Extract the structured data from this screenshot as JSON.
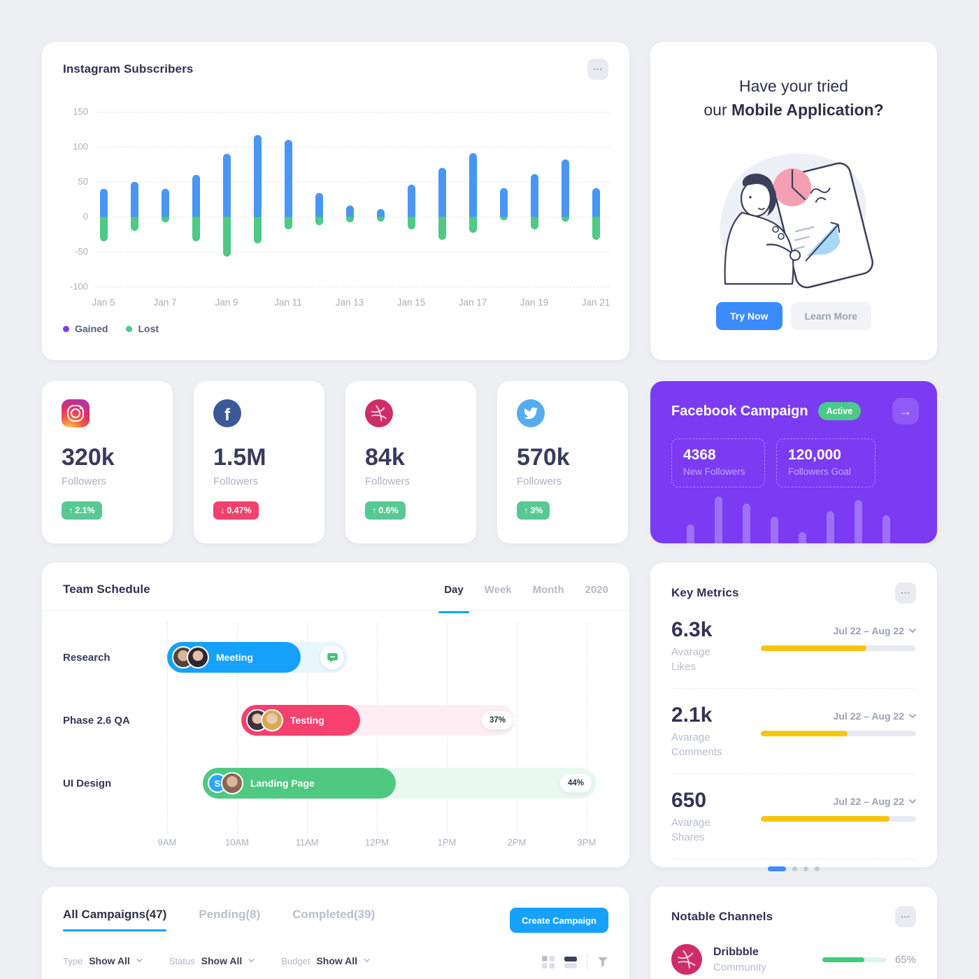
{
  "colors": {
    "page_bg": "#edeff3",
    "accent_blue": "#16a1fb",
    "royal_blue": "#3c8bfd",
    "bar_blue": "#4a96f4",
    "green": "#4ec986",
    "legend_purple": "#7a3cf5",
    "pink_red": "#f8406e",
    "badge_green": "#57c992",
    "badge_red": "#f2416d",
    "purple_card": "#7a3bf3",
    "yellow": "#f8c40d",
    "dribbble_pink": "#ce2e68",
    "facebook_blue": "#3b5998",
    "twitter_blue": "#55acee"
  },
  "instagram_subscribers": {
    "title": "Instagram Subscribers",
    "menu_icon": "ellipsis-icon",
    "legend": [
      {
        "label": "Gained",
        "color": "#7a3cf5"
      },
      {
        "label": "Lost",
        "color": "#4ec986"
      }
    ],
    "chart_data": {
      "type": "bar",
      "stacked": true,
      "categories": [
        "Jan 5",
        "Jan 6",
        "Jan 7",
        "Jan 8",
        "Jan 9",
        "Jan 10",
        "Jan 11",
        "Jan 12",
        "Jan 13",
        "Jan 14",
        "Jan 15",
        "Jan 16",
        "Jan 17",
        "Jan 18",
        "Jan 19",
        "Jan 20",
        "Jan 21"
      ],
      "x_tick_labels": [
        "Jan 5",
        "Jan 7",
        "Jan 9",
        "Jan 11",
        "Jan 13",
        "Jan 15",
        "Jan 17",
        "Jan 19",
        "Jan 21"
      ],
      "series": [
        {
          "name": "Gained",
          "color": "#4a96f4",
          "values": [
            40,
            50,
            40,
            60,
            90,
            117,
            110,
            34,
            16,
            11,
            46,
            70,
            91,
            41,
            61,
            82,
            41
          ]
        },
        {
          "name": "Lost",
          "color": "#4ec986",
          "values": [
            -35,
            -20,
            -8,
            -35,
            -57,
            -38,
            -18,
            -12,
            -8,
            -7,
            -18,
            -33,
            -23,
            -5,
            -18,
            -7,
            -33
          ]
        }
      ],
      "ylim": [
        -100,
        150
      ],
      "yticks": [
        150,
        100,
        50,
        0,
        -50,
        -100
      ],
      "grid": "dashed horizontal",
      "legend_position": "bottom-left"
    }
  },
  "mobile_app_promo": {
    "heading_line1": "Have your tried",
    "heading_line2_prefix": "our ",
    "heading_line2_bold": "Mobile Application?",
    "illustration": "woman-holding-tablet-with-charts",
    "try_now_label": "Try Now",
    "learn_more_label": "Learn More"
  },
  "social_stats": [
    {
      "network": "instagram",
      "icon": "instagram-icon",
      "value": "320k",
      "label": "Followers",
      "change": "2.1%",
      "direction": "up",
      "arrow": "↑"
    },
    {
      "network": "facebook",
      "icon": "facebook-icon",
      "value": "1.5M",
      "label": "Followers",
      "change": "0.47%",
      "direction": "down",
      "arrow": "↓"
    },
    {
      "network": "dribbble",
      "icon": "dribbble-icon",
      "value": "84k",
      "label": "Followers",
      "change": "0.6%",
      "direction": "up",
      "arrow": "↑"
    },
    {
      "network": "twitter",
      "icon": "twitter-icon",
      "value": "570k",
      "label": "Followers",
      "change": "3%",
      "direction": "up",
      "arrow": "↑"
    }
  ],
  "facebook_campaign": {
    "title": "Facebook Campaign",
    "status_badge": "Active",
    "arrow_icon": "→",
    "stats": [
      {
        "value": "4368",
        "label": "New Followers"
      },
      {
        "value": "120,000",
        "label": "Followers Goal"
      }
    ],
    "mini_bars": [
      27,
      67,
      57,
      38,
      16,
      46,
      62,
      40
    ]
  },
  "team_schedule": {
    "title": "Team Schedule",
    "tabs": [
      "Day",
      "Week",
      "Month",
      "2020"
    ],
    "active_tab": "Day",
    "times": [
      "9AM",
      "10AM",
      "11AM",
      "12PM",
      "1PM",
      "2PM",
      "3PM"
    ],
    "rows": [
      {
        "label": "Research",
        "task": "Meeting",
        "color": "blue",
        "extras": "comment-icon"
      },
      {
        "label": "Phase 2.6 QA",
        "task": "Testing",
        "color": "pink",
        "progress": "37%"
      },
      {
        "label": "UI Design",
        "task": "Landing Page",
        "color": "green",
        "avatar_initial": "S",
        "progress": "44%"
      }
    ]
  },
  "key_metrics": {
    "title": "Key Metrics",
    "menu_icon": "ellipsis-icon",
    "items": [
      {
        "value": "6.3k",
        "label1": "Avarage",
        "label2": "Likes",
        "range": "Jul 22 – Aug 22",
        "progress": 68
      },
      {
        "value": "2.1k",
        "label1": "Avarage",
        "label2": "Comments",
        "range": "Jul 22 – Aug 22",
        "progress": 56
      },
      {
        "value": "650",
        "label1": "Avarage",
        "label2": "Shares",
        "range": "Jul 22 – Aug 22",
        "progress": 83
      }
    ],
    "pagination": {
      "pages": 4,
      "active": 1
    }
  },
  "campaigns": {
    "tabs": [
      {
        "label": "All Campaigns(47)",
        "active": true
      },
      {
        "label": "Pending(8)",
        "active": false
      },
      {
        "label": "Completed(39)",
        "active": false
      }
    ],
    "create_button": "Create Campaign",
    "filters": [
      {
        "name": "Type",
        "value": "Show All"
      },
      {
        "name": "Status",
        "value": "Show All"
      },
      {
        "name": "Budget",
        "value": "Show All"
      }
    ],
    "view_icons": [
      "grid-view-icon",
      "list-view-icon",
      "filter-funnel-icon"
    ]
  },
  "notable_channels": {
    "title": "Notable Channels",
    "menu_icon": "ellipsis-icon",
    "channels": [
      {
        "name": "Dribbble",
        "subtitle": "Community",
        "icon": "dribbble-icon",
        "progress": 65,
        "progress_text": "65%"
      }
    ]
  }
}
